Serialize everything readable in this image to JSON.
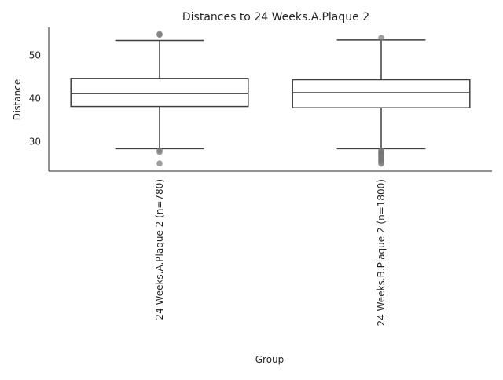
{
  "chart_data": {
    "type": "box",
    "title": "Distances to 24 Weeks.A.Plaque 2",
    "xlabel": "Group",
    "ylabel": "Distance",
    "ylim": [
      23.2,
      56.5
    ],
    "yticks": [
      30,
      40,
      50
    ],
    "grid": false,
    "categories": [
      "24 Weeks.A.Plaque 2 (n=780)",
      "24 Weeks.B.Plaque 2 (n=1800)"
    ],
    "boxes": [
      {
        "whisker_low": 28.4,
        "q1": 38.2,
        "median": 41.2,
        "q3": 44.7,
        "whisker_high": 53.5,
        "outliers": [
          54.8,
          55.0,
          28.0,
          27.6,
          25.0
        ]
      },
      {
        "whisker_low": 28.4,
        "q1": 37.9,
        "median": 41.4,
        "q3": 44.4,
        "whisker_high": 53.6,
        "outliers": [
          54.1,
          28.0,
          27.7,
          27.5,
          27.3,
          27.1,
          26.9,
          26.7,
          26.5,
          26.2,
          25.9,
          25.7,
          25.5,
          25.2,
          24.9
        ]
      }
    ],
    "colors": {
      "line": "#3f3f3f",
      "outlier": "#7f7f7f",
      "axis": "#262626"
    }
  }
}
